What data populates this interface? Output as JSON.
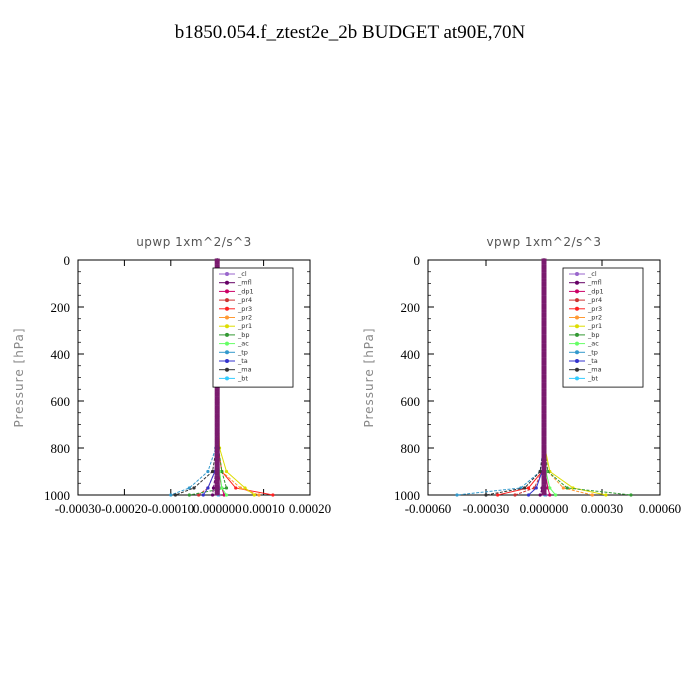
{
  "title": "b1850.054.f_ztest2e_2b  BUDGET at90E,70N",
  "chart_data": [
    {
      "type": "line",
      "title": "upwp   1xm^2/s^3",
      "ylabel": "Pressure [hPa]",
      "xlim": [
        -0.0003,
        0.0002
      ],
      "ylim": [
        0,
        1000
      ],
      "y_inverted": true,
      "xticks": [
        -0.0003,
        -0.0002,
        -0.0001,
        0.0,
        0.0001,
        0.0002
      ],
      "xtick_labels": [
        "-0.00030",
        "-0.00020",
        "-0.00010",
        "0.000000",
        "0.00010",
        "0.00020"
      ],
      "yticks": [
        0,
        200,
        400,
        600,
        800,
        1000
      ],
      "ytick_labels": [
        "0",
        "200",
        "400",
        "600",
        "800",
        "1000"
      ],
      "legend_position": "top-right",
      "series": [
        {
          "name": "_cl",
          "color": "#9966cc",
          "x": [
            0,
            0,
            0,
            2e-06,
            5e-06,
            4e-06
          ],
          "y": [
            0,
            500,
            800,
            900,
            970,
            1000
          ]
        },
        {
          "name": "_mfl",
          "color": "#660066",
          "x": [
            0,
            0,
            0,
            -3e-06,
            -8e-06,
            -1e-05
          ],
          "y": [
            0,
            500,
            800,
            900,
            970,
            1000
          ]
        },
        {
          "name": "_dp1",
          "color": "#cc0066",
          "x": [
            0,
            0,
            0,
            3e-06,
            1e-05,
            1.5e-05
          ],
          "y": [
            0,
            500,
            800,
            900,
            970,
            1000
          ]
        },
        {
          "name": "_pr4",
          "color": "#cc3333",
          "x": [
            0,
            0,
            0,
            -5e-06,
            -2e-05,
            -4e-05
          ],
          "y": [
            0,
            500,
            800,
            900,
            970,
            1000
          ]
        },
        {
          "name": "_pr3",
          "color": "#ff2222",
          "x": [
            0,
            0,
            2e-06,
            1e-05,
            4e-05,
            0.00012
          ],
          "y": [
            0,
            500,
            800,
            900,
            970,
            1000
          ]
        },
        {
          "name": "_pr2",
          "color": "#ff9933",
          "x": [
            0,
            0,
            2e-06,
            1e-05,
            5e-05,
            9e-05
          ],
          "y": [
            0,
            500,
            800,
            900,
            970,
            1000
          ]
        },
        {
          "name": "_pr1",
          "color": "#dddd00",
          "x": [
            0,
            0,
            5e-06,
            2e-05,
            6e-05,
            8e-05
          ],
          "y": [
            0,
            500,
            800,
            900,
            970,
            1000
          ]
        },
        {
          "name": "_bp",
          "color": "#339933",
          "x": [
            0,
            0,
            3e-06,
            1e-05,
            2e-05,
            -6e-05
          ],
          "y": [
            0,
            500,
            800,
            900,
            970,
            1000
          ]
        },
        {
          "name": "_ac",
          "color": "#66ff66",
          "x": [
            0,
            0,
            0,
            5e-06,
            1e-05,
            2e-05
          ],
          "y": [
            0,
            500,
            800,
            900,
            970,
            1000
          ]
        },
        {
          "name": "_tp",
          "color": "#3399cc",
          "x": [
            0,
            0,
            -3e-06,
            -2e-05,
            -6e-05,
            -0.0001
          ],
          "y": [
            0,
            500,
            800,
            900,
            970,
            1000
          ]
        },
        {
          "name": "_ta",
          "color": "#3333cc",
          "x": [
            0,
            0,
            0,
            -5e-06,
            -2e-05,
            -3e-05
          ],
          "y": [
            0,
            500,
            800,
            900,
            970,
            1000
          ]
        },
        {
          "name": "_ma",
          "color": "#333333",
          "x": [
            0,
            0,
            -2e-06,
            -1e-05,
            -5e-05,
            -9e-05
          ],
          "y": [
            0,
            500,
            800,
            900,
            970,
            1000
          ]
        },
        {
          "name": "_bt",
          "color": "#33ccff",
          "x": [
            0,
            0,
            0,
            0,
            1e-06,
            2e-06
          ],
          "y": [
            0,
            500,
            800,
            900,
            970,
            1000
          ]
        }
      ]
    },
    {
      "type": "line",
      "title": "vpwp   1xm^2/s^3",
      "ylabel": "Pressure [hPa]",
      "xlim": [
        -0.0006,
        0.0006
      ],
      "ylim": [
        0,
        1000
      ],
      "y_inverted": true,
      "xticks": [
        -0.0006,
        -0.0003,
        0.0,
        0.0003,
        0.0006
      ],
      "xtick_labels": [
        "-0.00060",
        "-0.00030",
        "0.000000",
        "0.00030",
        "0.00060"
      ],
      "yticks": [
        0,
        200,
        400,
        600,
        800,
        1000
      ],
      "ytick_labels": [
        "0",
        "200",
        "400",
        "600",
        "800",
        "1000"
      ],
      "legend_position": "top-right",
      "series": [
        {
          "name": "_cl",
          "color": "#9966cc",
          "x": [
            0,
            0,
            0,
            3e-06,
            1e-05,
            1e-05
          ],
          "y": [
            0,
            500,
            800,
            900,
            970,
            1000
          ]
        },
        {
          "name": "_mfl",
          "color": "#660066",
          "x": [
            0,
            0,
            0,
            -3e-06,
            -1e-05,
            -2e-05
          ],
          "y": [
            0,
            500,
            800,
            900,
            970,
            1000
          ]
        },
        {
          "name": "_dp1",
          "color": "#cc0066",
          "x": [
            0,
            0,
            0,
            5e-06,
            2e-05,
            3e-05
          ],
          "y": [
            0,
            500,
            800,
            900,
            970,
            1000
          ]
        },
        {
          "name": "_pr4",
          "color": "#cc3333",
          "x": [
            0,
            0,
            0,
            -1e-05,
            -5e-05,
            -0.00015
          ],
          "y": [
            0,
            500,
            800,
            900,
            970,
            1000
          ]
        },
        {
          "name": "_pr3",
          "color": "#ff2222",
          "x": [
            0,
            0,
            0,
            -1e-05,
            -8e-05,
            -0.00024
          ],
          "y": [
            0,
            500,
            800,
            900,
            970,
            1000
          ]
        },
        {
          "name": "_pr2",
          "color": "#ff9933",
          "x": [
            0,
            0,
            5e-06,
            2e-05,
            0.0001,
            0.00025
          ],
          "y": [
            0,
            500,
            800,
            900,
            970,
            1000
          ]
        },
        {
          "name": "_pr1",
          "color": "#dddd00",
          "x": [
            0,
            0,
            5e-06,
            3e-05,
            0.00015,
            0.00032
          ],
          "y": [
            0,
            500,
            800,
            900,
            970,
            1000
          ]
        },
        {
          "name": "_bp",
          "color": "#339933",
          "x": [
            0,
            0,
            3e-06,
            2e-05,
            0.00012,
            0.00045
          ],
          "y": [
            0,
            500,
            800,
            900,
            970,
            1000
          ]
        },
        {
          "name": "_ac",
          "color": "#66ff66",
          "x": [
            0,
            0,
            0,
            1e-05,
            3e-05,
            6e-05
          ],
          "y": [
            0,
            500,
            800,
            900,
            970,
            1000
          ]
        },
        {
          "name": "_tp",
          "color": "#3399cc",
          "x": [
            0,
            0,
            -5e-06,
            -2e-05,
            -0.00012,
            -0.00045
          ],
          "y": [
            0,
            500,
            800,
            900,
            970,
            1000
          ]
        },
        {
          "name": "_ta",
          "color": "#3333cc",
          "x": [
            0,
            0,
            0,
            -1e-05,
            -4e-05,
            -8e-05
          ],
          "y": [
            0,
            500,
            800,
            900,
            970,
            1000
          ]
        },
        {
          "name": "_ma",
          "color": "#333333",
          "x": [
            0,
            0,
            -3e-06,
            -2e-05,
            -0.0001,
            -0.0003
          ],
          "y": [
            0,
            500,
            800,
            900,
            970,
            1000
          ]
        },
        {
          "name": "_bt",
          "color": "#33ccff",
          "x": [
            0,
            0,
            0,
            0,
            2e-06,
            4e-06
          ],
          "y": [
            0,
            500,
            800,
            900,
            970,
            1000
          ]
        }
      ]
    }
  ]
}
